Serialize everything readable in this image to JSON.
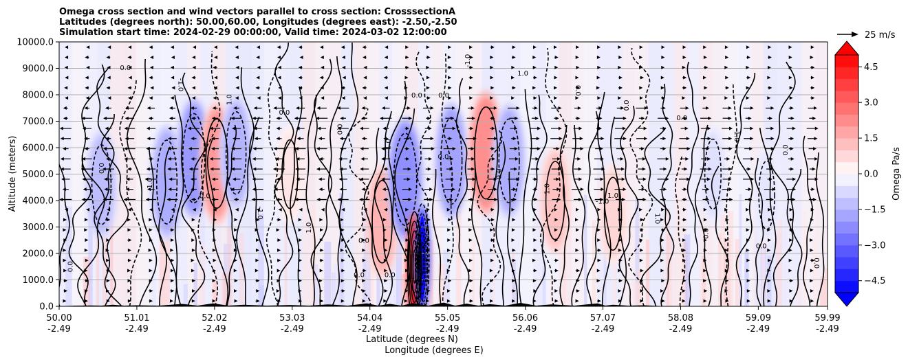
{
  "chart_data": {
    "type": "heatmap",
    "title_lines": [
      "Omega cross section and wind vectors parallel to cross section: CrosssectionA",
      "Latitudes (degrees north): 50.00,60.00, Longitudes (degrees east): -2.50,-2.50",
      "Simulation start time: 2024-02-29 00:00:00, Valid time: 2024-03-02 12:00:00"
    ],
    "xlabel": "Latitude (degrees N)",
    "xlabel2": "Longitude (degrees E)",
    "ylabel": "Altitude (meters)",
    "xlim": [
      50.0,
      59.99
    ],
    "ylim": [
      0,
      10000
    ],
    "x_ticks": [
      {
        "lat": "50.00",
        "lon": "-2.49",
        "value": 50.0
      },
      {
        "lat": "51.01",
        "lon": "-2.49",
        "value": 51.01
      },
      {
        "lat": "52.02",
        "lon": "-2.49",
        "value": 52.02
      },
      {
        "lat": "53.03",
        "lon": "-2.49",
        "value": 53.03
      },
      {
        "lat": "54.04",
        "lon": "-2.49",
        "value": 54.04
      },
      {
        "lat": "55.05",
        "lon": "-2.49",
        "value": 55.05
      },
      {
        "lat": "56.06",
        "lon": "-2.49",
        "value": 56.06
      },
      {
        "lat": "57.07",
        "lon": "-2.49",
        "value": 57.07
      },
      {
        "lat": "58.08",
        "lon": "-2.49",
        "value": 58.08
      },
      {
        "lat": "59.09",
        "lon": "-2.49",
        "value": 59.09
      },
      {
        "lat": "59.99",
        "lon": "-2.49",
        "value": 59.99
      }
    ],
    "y_ticks": [
      {
        "label": "0.0",
        "value": 0
      },
      {
        "label": "1000.0",
        "value": 1000
      },
      {
        "label": "2000.0",
        "value": 2000
      },
      {
        "label": "3000.0",
        "value": 3000
      },
      {
        "label": "4000.0",
        "value": 4000
      },
      {
        "label": "5000.0",
        "value": 5000
      },
      {
        "label": "6000.0",
        "value": 6000
      },
      {
        "label": "7000.0",
        "value": 7000
      },
      {
        "label": "8000.0",
        "value": 8000
      },
      {
        "label": "9000.0",
        "value": 9000
      },
      {
        "label": "10000.0",
        "value": 10000
      }
    ],
    "colorbar": {
      "label": "Omega Pa/s",
      "range": [
        -5,
        5
      ],
      "step": 0.5,
      "extend": "both",
      "ticks": [
        {
          "label": "4.5",
          "value": 4.5
        },
        {
          "label": "3.0",
          "value": 3.0
        },
        {
          "label": "1.5",
          "value": 1.5
        },
        {
          "label": "0.0",
          "value": 0.0
        },
        {
          "label": "−1.5",
          "value": -1.5
        },
        {
          "label": "−3.0",
          "value": -3.0
        },
        {
          "label": "−4.5",
          "value": -4.5
        }
      ]
    },
    "quiver_key": "25 m/s",
    "contour_levels": [
      -1.0,
      0.0,
      1.0
    ],
    "omega_features": [
      {
        "lat": 50.55,
        "alt": 4600,
        "value": -1.3
      },
      {
        "lat": 51.4,
        "alt": 4700,
        "value": -1.6
      },
      {
        "lat": 51.75,
        "alt": 5600,
        "value": -2.0
      },
      {
        "lat": 52.05,
        "alt": 5400,
        "value": 2.0
      },
      {
        "lat": 52.3,
        "alt": 5800,
        "value": -1.5
      },
      {
        "lat": 53.0,
        "alt": 5000,
        "value": 0.5
      },
      {
        "lat": 54.2,
        "alt": 3200,
        "value": 1.5
      },
      {
        "lat": 54.5,
        "alt": 4800,
        "value": -2.2
      },
      {
        "lat": 54.62,
        "alt": 1500,
        "value": 5.0
      },
      {
        "lat": 54.72,
        "alt": 1800,
        "value": -4.0
      },
      {
        "lat": 55.1,
        "alt": 5500,
        "value": -1.8
      },
      {
        "lat": 55.55,
        "alt": 5800,
        "value": 2.2
      },
      {
        "lat": 55.85,
        "alt": 5500,
        "value": -1.6
      },
      {
        "lat": 56.45,
        "alt": 4000,
        "value": 1.2
      },
      {
        "lat": 57.2,
        "alt": 3500,
        "value": 0.8
      },
      {
        "lat": 58.5,
        "alt": 5000,
        "value": -0.6
      },
      {
        "lat": 59.2,
        "alt": 4200,
        "value": -0.5
      }
    ],
    "contour_label_texts": [
      "0.0",
      "0.0",
      "0.0",
      "1.0",
      "-1.0",
      "0.0",
      "1.0",
      "-1.0",
      "0.0",
      "1.0",
      "0.0",
      "0.0",
      "1.0",
      "0.0",
      "0.0",
      "-1.0",
      "0.0",
      "1.0",
      "1.0",
      "0.0",
      "-1.0",
      "0.0",
      "1.0",
      "0.0",
      "0.0",
      "-1.0",
      "0.0",
      "0.0",
      "0.0"
    ],
    "annotation_texts": [
      "0.0",
      "0.0",
      "1.0",
      "0.0",
      "0.0"
    ]
  }
}
